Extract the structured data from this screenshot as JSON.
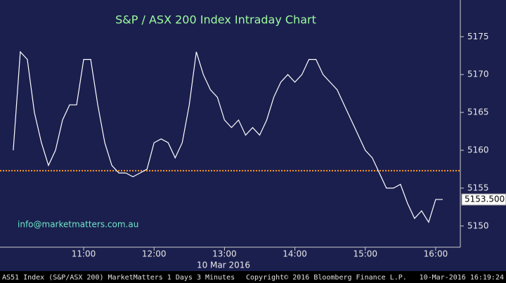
{
  "chart_data": {
    "type": "line",
    "title": "S&P / ASX 200 Index Intraday Chart",
    "watermark": "info@marketmatters.com.au",
    "date_label": "10 Mar 2016",
    "last_label": "5153.500",
    "footer": {
      "left": "AS51 Index (S&P/ASX 200) MarketMatters 1 Days 3 Minutes",
      "center": "Copyright© 2016 Bloomberg Finance L.P.",
      "right": "10-Mar-2016 16:19:24"
    },
    "reference_line": 5157.3,
    "reference_color": "#ff9a1f",
    "background": "#1b1f4e",
    "x": [
      600,
      606,
      612,
      618,
      624,
      630,
      636,
      642,
      648,
      654,
      660,
      666,
      672,
      678,
      684,
      690,
      696,
      702,
      708,
      714,
      720,
      726,
      732,
      738,
      744,
      750,
      756,
      762,
      768,
      774,
      780,
      786,
      792,
      798,
      804,
      810,
      816,
      822,
      828,
      834,
      840,
      846,
      852,
      858,
      864,
      870,
      876,
      882,
      888,
      894,
      900,
      906,
      912,
      918,
      924,
      930,
      936,
      942,
      948,
      954,
      960,
      966
    ],
    "series": [
      {
        "name": "AS51 Index",
        "color": "#ffffff",
        "values": [
          5160,
          5173,
          5172,
          5165,
          5161,
          5158,
          5160,
          5164,
          5166,
          5166,
          5172,
          5172,
          5166,
          5161,
          5158,
          5157,
          5157,
          5156.5,
          5157,
          5157.5,
          5161,
          5161.5,
          5161,
          5159,
          5161,
          5166,
          5173,
          5170,
          5168,
          5167,
          5164,
          5163,
          5164,
          5162,
          5163,
          5162,
          5164,
          5167,
          5169,
          5170,
          5169,
          5170,
          5172,
          5172,
          5170,
          5169,
          5168,
          5166,
          5164,
          5162,
          5160,
          5159,
          5157,
          5155,
          5155,
          5155.5,
          5153,
          5151,
          5152,
          5150.5,
          5153.5,
          5153.5
        ]
      }
    ],
    "xlim": [
      588.7,
      981
    ],
    "xticks": [
      {
        "value": 660,
        "label": "11:00"
      },
      {
        "value": 720,
        "label": "12:00"
      },
      {
        "value": 780,
        "label": "13:00"
      },
      {
        "value": 840,
        "label": "14:00"
      },
      {
        "value": 900,
        "label": "15:00"
      },
      {
        "value": 960,
        "label": "16:00"
      }
    ],
    "ylim": [
      5147.2,
      5179.85
    ],
    "yticks": [
      5150,
      5155,
      5160,
      5165,
      5170,
      5175
    ],
    "grid": false
  }
}
